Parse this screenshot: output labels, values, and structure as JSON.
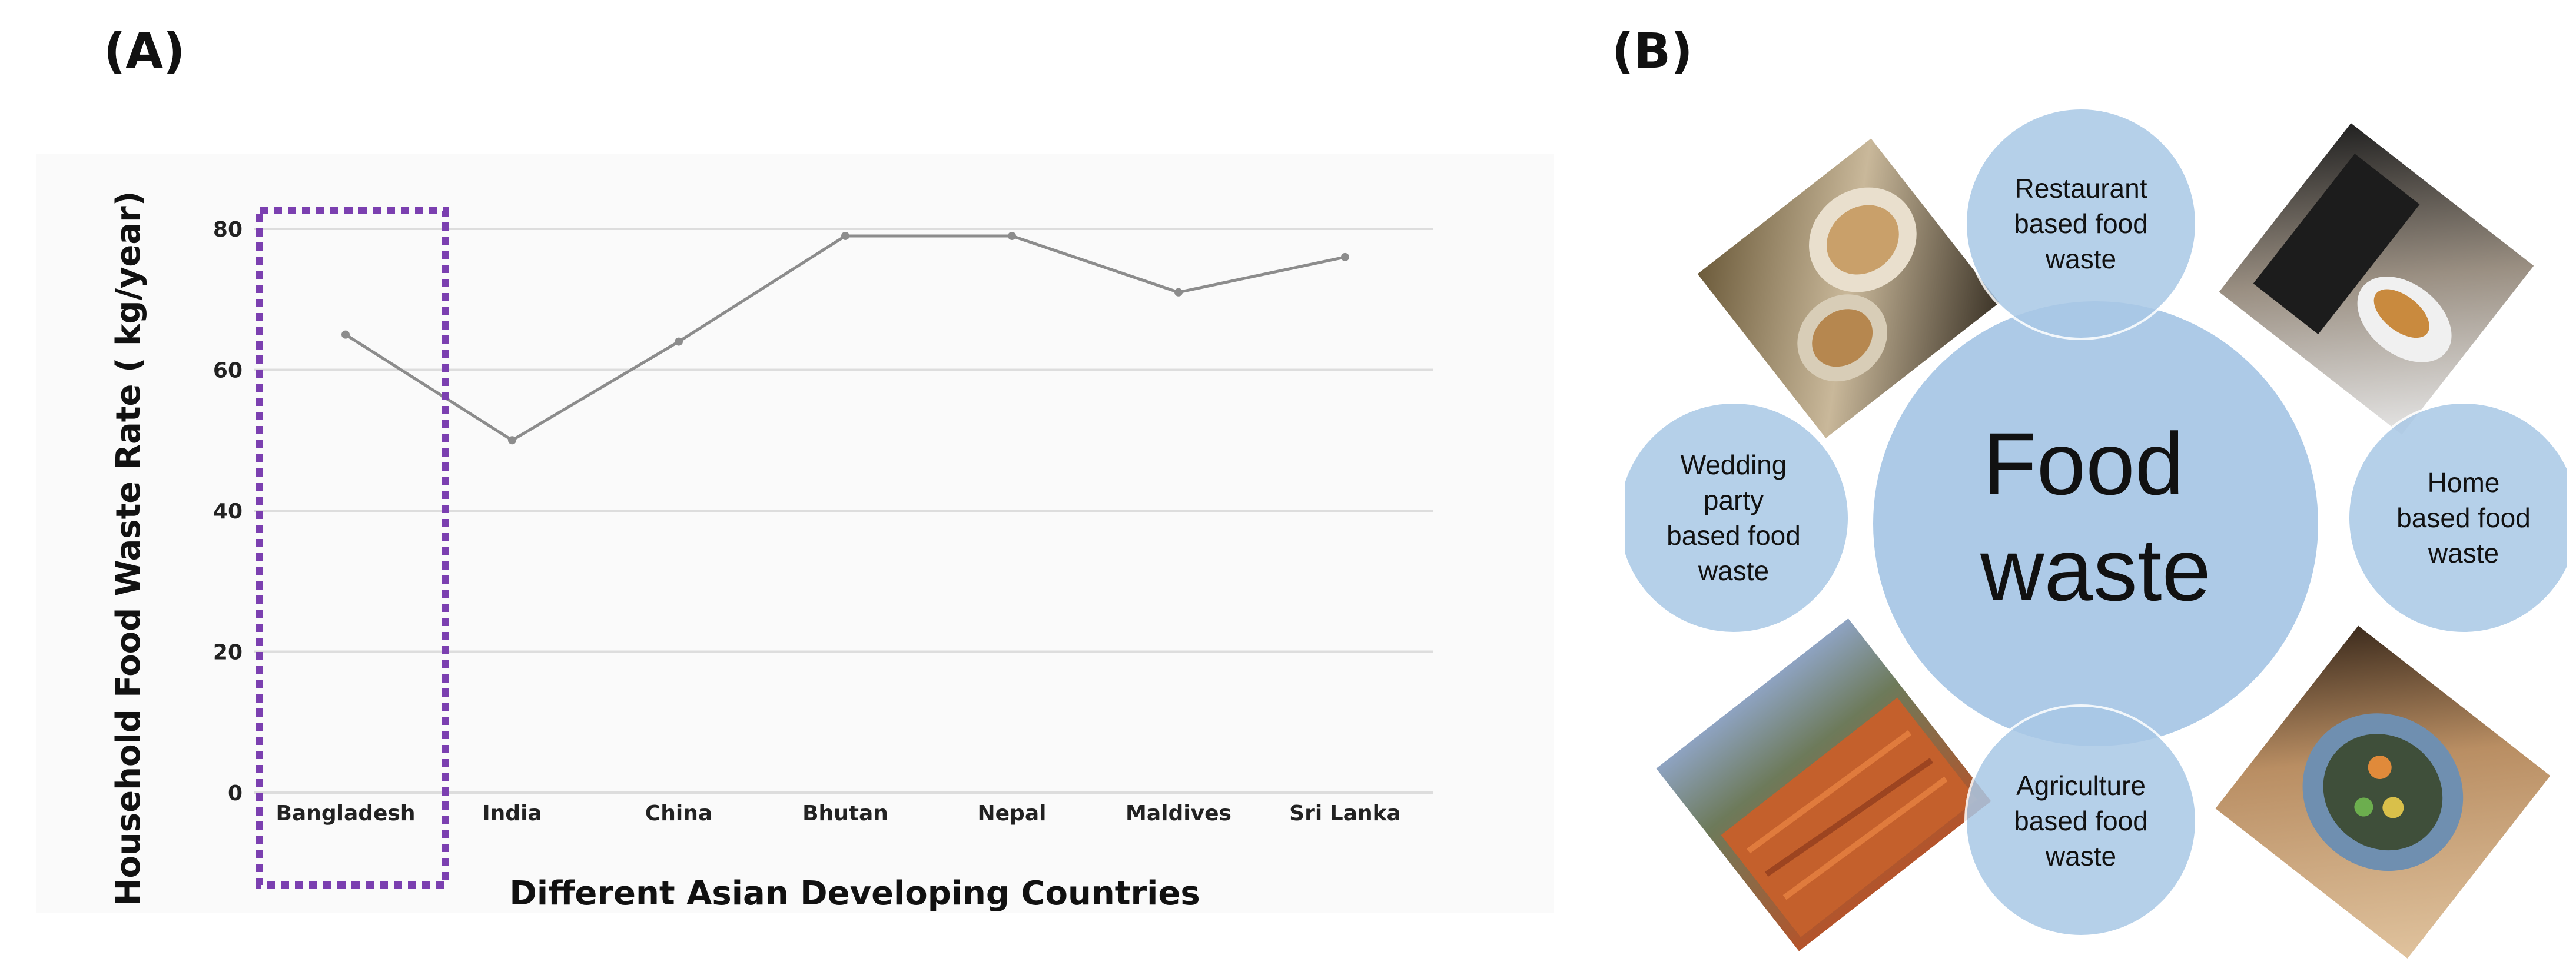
{
  "panels": {
    "a_label": "(A)",
    "b_label": "(B)"
  },
  "chart_data": {
    "type": "line",
    "categories": [
      "Bangladesh",
      "India",
      "China",
      "Bhutan",
      "Nepal",
      "Maldives",
      "Sri Lanka"
    ],
    "values": [
      65,
      50,
      64,
      79,
      79,
      71,
      76
    ],
    "title": "",
    "xlabel": "Different Asian Developing Countries",
    "ylabel": "Household Food Waste Rate ( kg/year)",
    "ylim": [
      0,
      80
    ],
    "yticks": [
      0,
      20,
      40,
      60,
      80
    ],
    "grid": true,
    "highlighted_category": "Bangladesh",
    "highlight_color": "#7b3fb0",
    "line_color": "#8c8c8c"
  },
  "diagram": {
    "center": "Food waste",
    "center_lines": [
      "Food",
      "waste"
    ],
    "fill_color": "#a9c8e6",
    "nodes": [
      {
        "id": "restaurant",
        "lines": [
          "Restaurant",
          "based food",
          "waste"
        ]
      },
      {
        "id": "home",
        "lines": [
          "Home",
          "based food",
          "waste"
        ]
      },
      {
        "id": "agriculture",
        "lines": [
          "Agriculture",
          "based food",
          "waste"
        ]
      },
      {
        "id": "wedding",
        "lines": [
          "Wedding",
          "party",
          "based food",
          "waste"
        ]
      }
    ],
    "photos": [
      {
        "id": "photo-restaurant-plates",
        "depicts": "plates-of-food-icon"
      },
      {
        "id": "photo-home-scraping",
        "depicts": "food-scraps-bin-icon"
      },
      {
        "id": "photo-wedding-waste",
        "depicts": "compost-bin-icon"
      },
      {
        "id": "photo-agriculture-carrots",
        "depicts": "discarded-carrots-icon"
      }
    ]
  }
}
